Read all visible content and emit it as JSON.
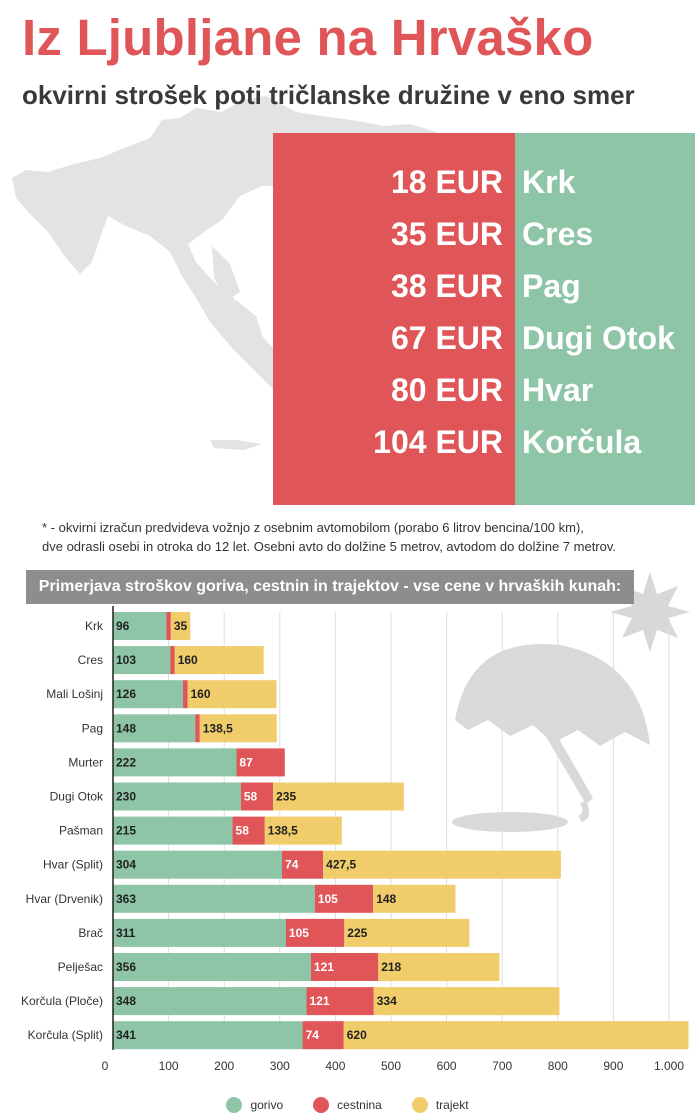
{
  "header": {
    "title": "Iz Ljubljane na Hrvaško",
    "subtitle": "okvirni strošek poti tričlanske družine v eno smer"
  },
  "prices": [
    {
      "price": "18 EUR",
      "destination": "Krk"
    },
    {
      "price": "35 EUR",
      "destination": "Cres"
    },
    {
      "price": "38 EUR",
      "destination": "Pag"
    },
    {
      "price": "67 EUR",
      "destination": "Dugi Otok"
    },
    {
      "price": "80 EUR",
      "destination": "Hvar"
    },
    {
      "price": "104 EUR",
      "destination": "Korčula"
    }
  ],
  "footnote": {
    "line1": "* - okvirni izračun predvideva vožnjo z osebnim avtomobilom (porabo 6 litrov bencina/100 km),",
    "line2": "dve odrasli osebi in otroka do 12 let. Osebni avto do dolžine 5 metrov, avtodom do dolžine 7 metrov."
  },
  "colors": {
    "red": "#e05558",
    "green": "#8ec5a6",
    "yellow": "#f0cc6a",
    "map_gray": "#e3e3e3"
  },
  "icons": [
    "croatia-map-icon",
    "umbrella-icon",
    "sun-icon"
  ],
  "chart_data": {
    "type": "bar",
    "orientation": "horizontal",
    "stacked": true,
    "title": "Primerjava stroškov goriva, cestnin in trajektov - vse cene v hrvaških kunah:",
    "categories": [
      "Krk",
      "Cres",
      "Mali Lošinj",
      "Pag",
      "Murter",
      "Dugi Otok",
      "Pašman",
      "Hvar (Split)",
      "Hvar (Drvenik)",
      "Brač",
      "Pelješac",
      "Korčula (Ploče)",
      "Korčula (Split)"
    ],
    "series": [
      {
        "name": "gorivo",
        "values": [
          96,
          103,
          126,
          148,
          222,
          230,
          215,
          304,
          363,
          311,
          356,
          348,
          341
        ],
        "labels": [
          "96",
          "103",
          "126",
          "148",
          "222",
          "230",
          "215",
          "304",
          "363",
          "311",
          "356",
          "348",
          "341"
        ]
      },
      {
        "name": "cestnina",
        "values": [
          8,
          8,
          8,
          8,
          87,
          58,
          58,
          74,
          105,
          105,
          121,
          121,
          74
        ],
        "labels": [
          "",
          "",
          "",
          "",
          "87",
          "58",
          "58",
          "74",
          "105",
          "105",
          "121",
          "121",
          "74"
        ]
      },
      {
        "name": "trajekt",
        "values": [
          35,
          160,
          160,
          138.5,
          0,
          235,
          138.5,
          427.5,
          148,
          225,
          218,
          334,
          620
        ],
        "labels": [
          "35",
          "160",
          "160",
          "138,5",
          "",
          "235",
          "138,5",
          "427,5",
          "148",
          "225",
          "218",
          "334",
          "620"
        ]
      }
    ],
    "xlim": [
      0,
      1040
    ],
    "xticks": [
      0,
      100,
      200,
      300,
      400,
      500,
      600,
      700,
      800,
      900,
      1000
    ],
    "xtick_labels": [
      "0",
      "100",
      "200",
      "300",
      "400",
      "500",
      "600",
      "700",
      "800",
      "900",
      "1.000"
    ],
    "grid": true,
    "legend_position": "bottom-center"
  }
}
